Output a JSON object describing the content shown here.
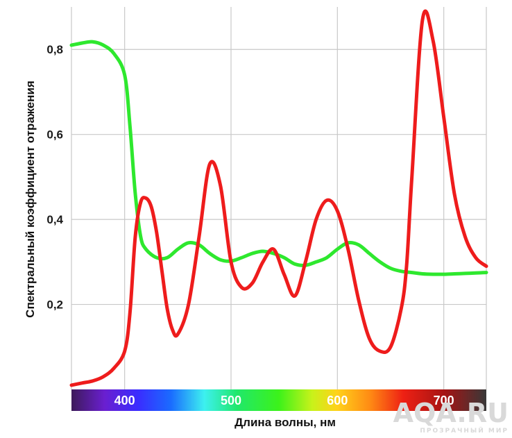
{
  "chart_data": {
    "type": "line",
    "title": "",
    "xlabel": "Длина волны, нм",
    "ylabel": "Спектральный коэффициент отражения",
    "xlim": [
      350,
      740
    ],
    "ylim": [
      0,
      0.9
    ],
    "grid": true,
    "x_ticks": [
      {
        "value": 400,
        "label": "400"
      },
      {
        "value": 500,
        "label": "500"
      },
      {
        "value": 600,
        "label": "600"
      },
      {
        "value": 700,
        "label": "700"
      }
    ],
    "y_ticks": [
      {
        "value": 0.2,
        "label": "0,2"
      },
      {
        "value": 0.4,
        "label": "0,4"
      },
      {
        "value": 0.6,
        "label": "0,6"
      },
      {
        "value": 0.8,
        "label": "0,8"
      }
    ],
    "spectrum_band": true,
    "series": [
      {
        "color": "#2ee82e",
        "x": [
          350,
          360,
          370,
          380,
          390,
          400,
          405,
          410,
          415,
          420,
          430,
          440,
          450,
          460,
          470,
          480,
          490,
          500,
          510,
          520,
          530,
          540,
          550,
          560,
          570,
          580,
          590,
          600,
          610,
          620,
          630,
          640,
          650,
          660,
          670,
          680,
          690,
          700,
          710,
          720,
          730,
          740
        ],
        "y": [
          0.81,
          0.815,
          0.818,
          0.81,
          0.79,
          0.74,
          0.62,
          0.46,
          0.36,
          0.33,
          0.31,
          0.31,
          0.33,
          0.345,
          0.34,
          0.32,
          0.305,
          0.302,
          0.31,
          0.32,
          0.325,
          0.32,
          0.31,
          0.295,
          0.292,
          0.3,
          0.31,
          0.33,
          0.345,
          0.34,
          0.32,
          0.3,
          0.285,
          0.278,
          0.275,
          0.272,
          0.271,
          0.271,
          0.272,
          0.273,
          0.274,
          0.275
        ]
      },
      {
        "color": "#ee1c1c",
        "x": [
          350,
          360,
          370,
          380,
          390,
          400,
          405,
          410,
          415,
          420,
          425,
          430,
          435,
          440,
          445,
          450,
          460,
          470,
          480,
          490,
          500,
          510,
          520,
          530,
          540,
          550,
          560,
          570,
          580,
          590,
          600,
          610,
          620,
          630,
          640,
          650,
          660,
          665,
          670,
          680,
          690,
          700,
          710,
          720,
          730,
          740
        ],
        "y": [
          0.01,
          0.015,
          0.02,
          0.03,
          0.05,
          0.09,
          0.18,
          0.36,
          0.44,
          0.45,
          0.43,
          0.37,
          0.28,
          0.19,
          0.14,
          0.13,
          0.2,
          0.36,
          0.53,
          0.48,
          0.3,
          0.24,
          0.25,
          0.3,
          0.33,
          0.27,
          0.22,
          0.3,
          0.4,
          0.445,
          0.42,
          0.33,
          0.21,
          0.12,
          0.09,
          0.1,
          0.19,
          0.29,
          0.5,
          0.87,
          0.82,
          0.64,
          0.46,
          0.36,
          0.31,
          0.29
        ]
      }
    ]
  },
  "watermark": {
    "main": "AQA.RU",
    "sub": "ПРОЗРАЧНЫЙ МИР"
  }
}
